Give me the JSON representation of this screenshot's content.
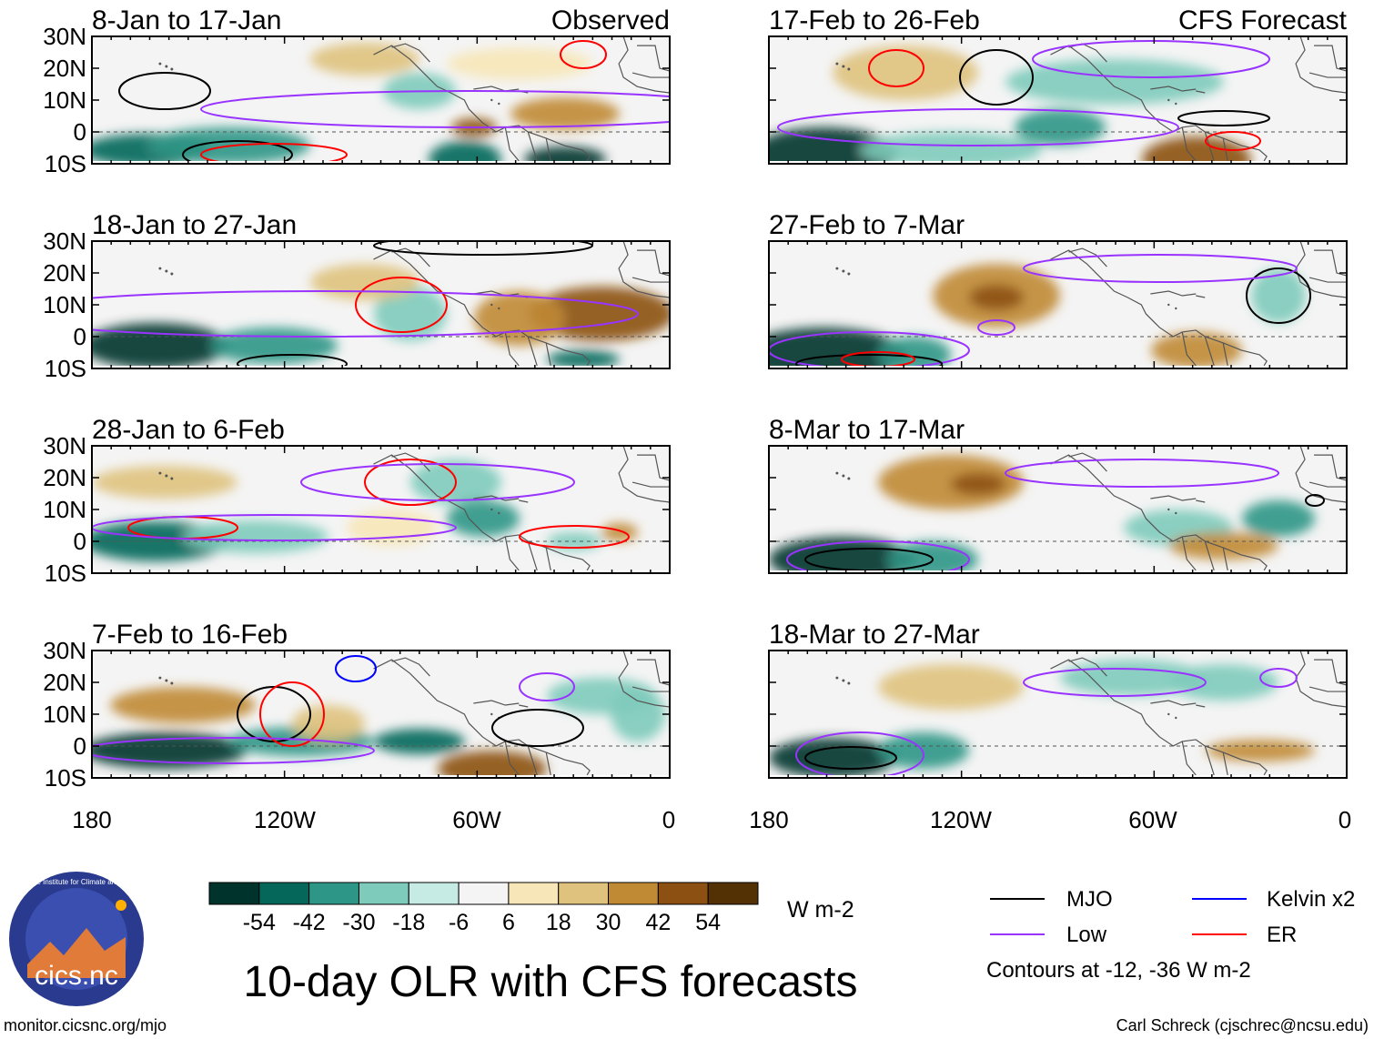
{
  "figure_title": "10-day OLR with CFS forecasts",
  "colors": {
    "mjo": "#000000",
    "kelvin": "#0000ff",
    "low": "#9933ff",
    "er": "#ff0000",
    "land_outline": "#555555"
  },
  "observed_label": "Observed",
  "forecast_label": "CFS Forecast",
  "latitude_ticks": [
    "30N",
    "20N",
    "10N",
    "0",
    "10S"
  ],
  "longitude_ticks": [
    "180",
    "120W",
    "60W",
    "0"
  ],
  "panels": [
    {
      "id": "p1",
      "period": "8-Jan to 17-Jan",
      "tag": "Observed"
    },
    {
      "id": "p2",
      "period": "18-Jan to 27-Jan",
      "tag": ""
    },
    {
      "id": "p3",
      "period": "28-Jan to 6-Feb",
      "tag": ""
    },
    {
      "id": "p4",
      "period": "7-Feb to 16-Feb",
      "tag": ""
    },
    {
      "id": "p5",
      "period": "17-Feb to 26-Feb",
      "tag": "CFS Forecast"
    },
    {
      "id": "p6",
      "period": "27-Feb to 7-Mar",
      "tag": ""
    },
    {
      "id": "p7",
      "period": "8-Mar to 17-Mar",
      "tag": ""
    },
    {
      "id": "p8",
      "period": "18-Mar to 27-Mar",
      "tag": ""
    }
  ],
  "colorbar": {
    "labels": [
      "-54",
      "-42",
      "-30",
      "-18",
      "-6",
      "6",
      "18",
      "30",
      "42",
      "54"
    ],
    "colors": [
      "#00332b",
      "#05675a",
      "#2e9686",
      "#7ecbbb",
      "#c6ebe4",
      "#f4f4f4",
      "#f7e7b8",
      "#dfc27d",
      "#c08a34",
      "#8c5112",
      "#543005"
    ],
    "units": "W m-2"
  },
  "legend": {
    "mjo": "MJO",
    "kelvin": "Kelvin x2",
    "low": "Low",
    "er": "ER",
    "note": "Contours at -12, -36 W m-2"
  },
  "logo_text": "cics.nc",
  "logo_ring": "Cooperative Institute for Climate and Satellites",
  "footer_left": "monitor.cicsnc.org/mjo",
  "footer_right": "Carl Schreck (cjschrec@ncsu.edu)"
}
